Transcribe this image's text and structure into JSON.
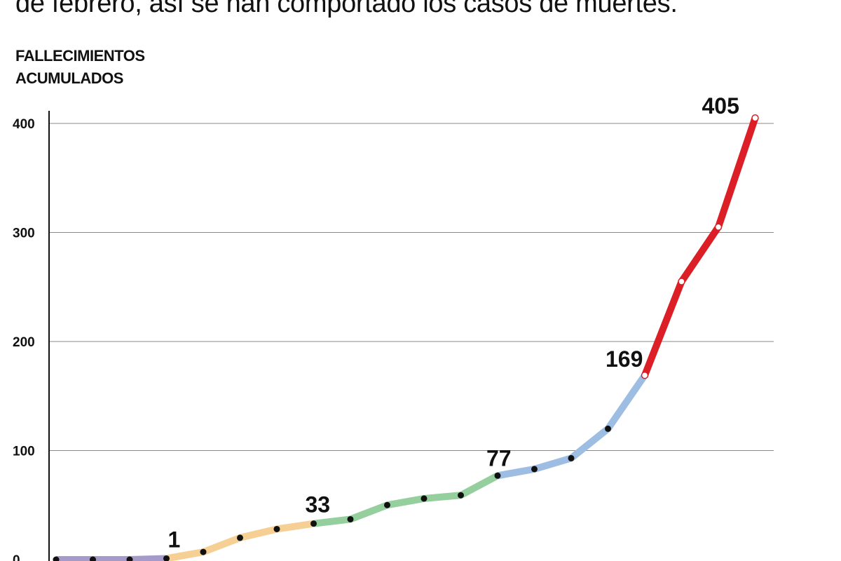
{
  "subtitle": "de febrero, así se han comportado los casos de muertes.",
  "chart_data": {
    "type": "line",
    "ylabel": "FALLECIMIENTOS ACUMULADOS",
    "ylabel_lines": [
      "FALLECIMIENTOS",
      "ACUMULADOS"
    ],
    "ylim": [
      0,
      410
    ],
    "yticks": [
      0,
      100,
      200,
      300,
      400
    ],
    "grid": true,
    "x": [
      1,
      2,
      3,
      4,
      5,
      6,
      7,
      8,
      9,
      10,
      11,
      12,
      13,
      14,
      15,
      16,
      17,
      18,
      19,
      20,
      21
    ],
    "values": [
      0,
      0,
      0,
      1,
      7,
      20,
      28,
      33,
      37,
      50,
      56,
      59,
      77,
      83,
      93,
      120,
      169,
      255,
      305,
      405,
      405
    ],
    "segments": [
      {
        "from": 0,
        "to": 3,
        "color": "#a69ac9"
      },
      {
        "from": 3,
        "to": 7,
        "color": "#f5cf93"
      },
      {
        "from": 7,
        "to": 12,
        "color": "#95cf9e"
      },
      {
        "from": 12,
        "to": 16,
        "color": "#9dbde3"
      },
      {
        "from": 16,
        "to": 19,
        "color": "#dc1f26"
      }
    ],
    "data_labels": [
      {
        "index": 3,
        "text": "1"
      },
      {
        "index": 7,
        "text": "33"
      },
      {
        "index": 12,
        "text": "77"
      },
      {
        "index": 16,
        "text": "169"
      },
      {
        "index": 19,
        "text": "405"
      }
    ]
  }
}
